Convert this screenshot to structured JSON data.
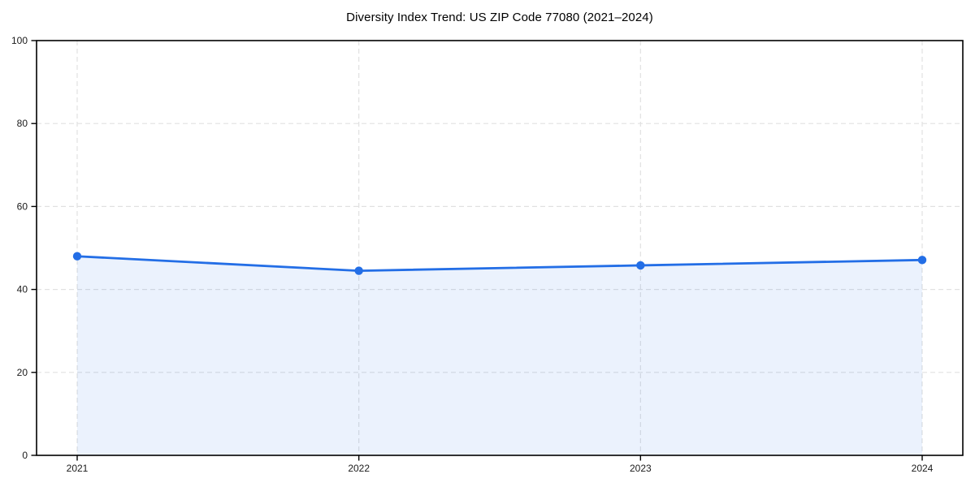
{
  "page": {
    "background": "#ffffff"
  },
  "chart_data": {
    "type": "line",
    "title": "Diversity Index Trend: US ZIP Code 77080 (2021–2024)",
    "x_categories": [
      "2021",
      "2022",
      "2023",
      "2024"
    ],
    "series": [
      {
        "name": "Diversity Index",
        "values": [
          48.0,
          44.5,
          45.8,
          47.1
        ]
      }
    ],
    "ylim": [
      0,
      100
    ],
    "yticks": [
      0,
      20,
      40,
      60,
      80,
      100
    ],
    "xlabel": "",
    "ylabel": "",
    "legend": "none",
    "grid": "dashed-both-axes",
    "area_fill": true,
    "fill_opacity": 0.09,
    "markers": "circle",
    "colors": {
      "line": "#236ee6",
      "grid": "#e1e1e1",
      "axis": "#000000",
      "tick_label": "#1a1a1a",
      "title": "#000000"
    }
  }
}
